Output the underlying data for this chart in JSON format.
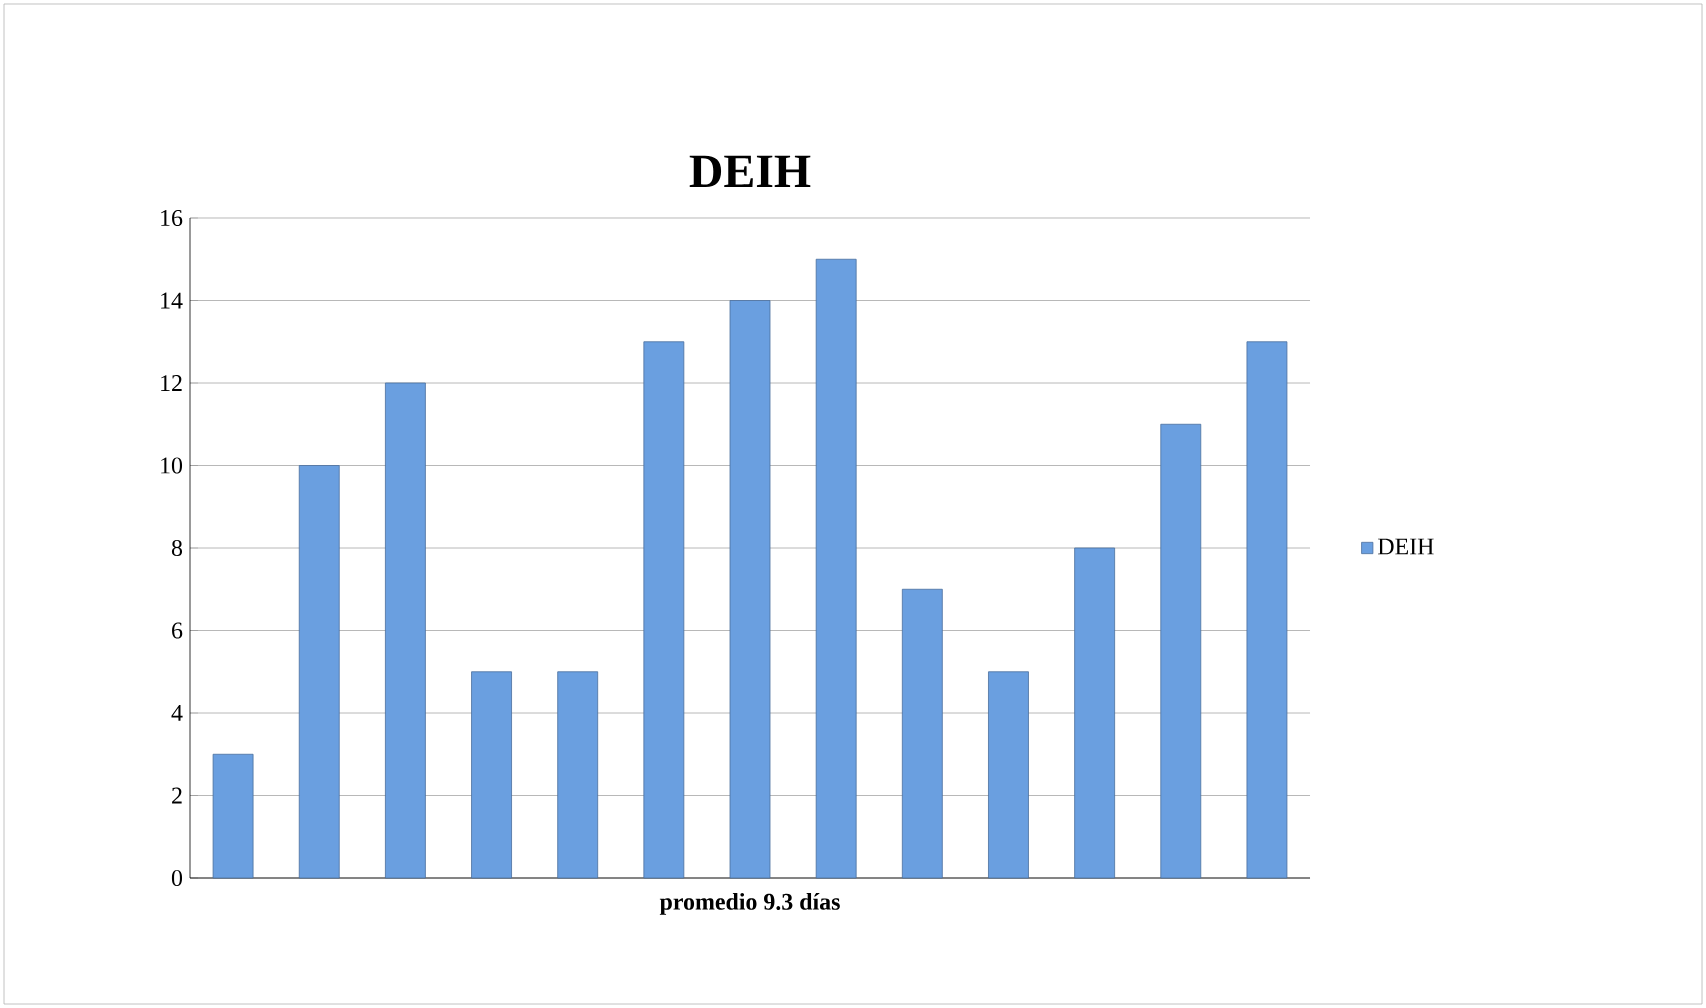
{
  "chart_data": {
    "type": "bar",
    "title": "DEIH",
    "xlabel": "promedio 9.3 días",
    "categories": [
      null,
      null,
      null,
      null,
      null,
      null,
      null,
      null,
      null,
      null,
      null,
      null,
      null
    ],
    "series": [
      {
        "name": "DEIH",
        "color": "#6a9fe0",
        "values": [
          3,
          10,
          12,
          5,
          5,
          13,
          14,
          15,
          7,
          5,
          8,
          11,
          13
        ]
      }
    ],
    "ylim": [
      0,
      16
    ],
    "yticks": [
      0,
      2,
      4,
      6,
      8,
      10,
      12,
      14,
      16
    ],
    "grid": "y",
    "legend": "right"
  }
}
